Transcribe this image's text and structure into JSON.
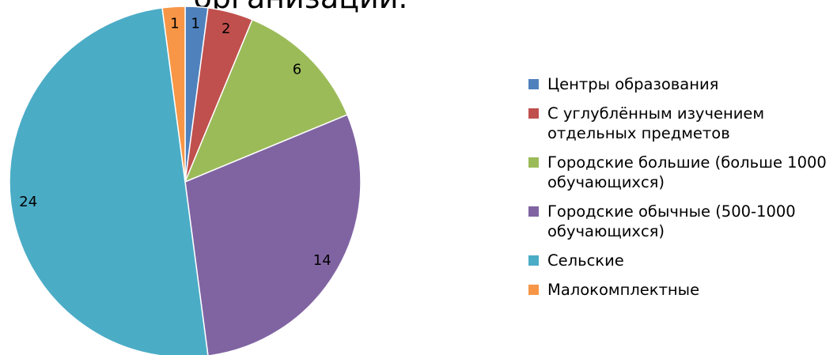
{
  "chart_data": {
    "type": "pie",
    "title": "организации.",
    "categories": [
      "Центры образования",
      "С углублённым изучением отдельных предметов",
      "Городские большие (больше 1000 обучающихся)",
      "Городские обычные (500-1000 обучающихся)",
      "Сельские",
      "Малокомплектные"
    ],
    "values": [
      1,
      2,
      6,
      14,
      24,
      1
    ],
    "colors": [
      "#4f81bd",
      "#c0504d",
      "#9bbb59",
      "#8064a2",
      "#4bacc6",
      "#f79646"
    ]
  }
}
